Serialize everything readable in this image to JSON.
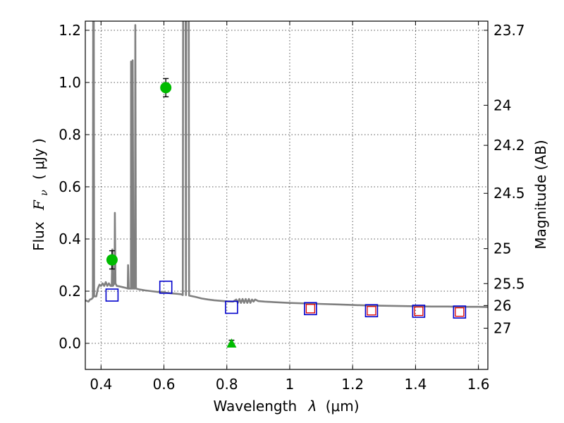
{
  "chart_data": {
    "type": "line",
    "title": "",
    "xlabel_prefix": "Wavelength",
    "xlabel_symbol": "λ",
    "xlabel_unit": "(μm)",
    "ylabel_prefix": "Flux",
    "ylabel_symbol": "F",
    "ylabel_sub": "ν",
    "ylabel_unit": "( μJy )",
    "y2label": "Magnitude (AB)",
    "xlim": [
      0.35,
      1.63
    ],
    "ylim": [
      -0.1,
      1.235
    ],
    "grid": true,
    "x_ticks": [
      {
        "value": 0.4,
        "label": "0.4"
      },
      {
        "value": 0.6,
        "label": "0.6"
      },
      {
        "value": 0.8,
        "label": "0.8"
      },
      {
        "value": 1.0,
        "label": "1"
      },
      {
        "value": 1.2,
        "label": "1.2"
      },
      {
        "value": 1.4,
        "label": "1.4"
      },
      {
        "value": 1.6,
        "label": "1.6"
      }
    ],
    "y_ticks": [
      {
        "value": 0.0,
        "label": "0.0"
      },
      {
        "value": 0.2,
        "label": "0.2"
      },
      {
        "value": 0.4,
        "label": "0.4"
      },
      {
        "value": 0.6,
        "label": "0.6"
      },
      {
        "value": 0.8,
        "label": "0.8"
      },
      {
        "value": 1.0,
        "label": "1.0"
      },
      {
        "value": 1.2,
        "label": "1.2"
      }
    ],
    "y2_ticks": [
      {
        "flux": 1.2,
        "label": "23.7"
      },
      {
        "flux": 0.9125,
        "label": "24"
      },
      {
        "flux": 0.759,
        "label": "24.2"
      },
      {
        "flux": 0.575,
        "label": "24.5"
      },
      {
        "flux": 0.363,
        "label": "25"
      },
      {
        "flux": 0.229,
        "label": "25.5"
      },
      {
        "flux": 0.145,
        "label": "26"
      },
      {
        "flux": 0.058,
        "label": "27"
      }
    ],
    "series": [
      {
        "kind": "model_spectrum",
        "color": "#808080",
        "points": [
          [
            0.35,
            0.165
          ],
          [
            0.36,
            0.16
          ],
          [
            0.365,
            0.168
          ],
          [
            0.37,
            0.17
          ],
          [
            0.374,
            0.175
          ],
          [
            0.375,
            1.25
          ],
          [
            0.377,
            1.25
          ],
          [
            0.378,
            0.18
          ],
          [
            0.385,
            0.18
          ],
          [
            0.39,
            0.21
          ],
          [
            0.395,
            0.225
          ],
          [
            0.4,
            0.22
          ],
          [
            0.405,
            0.23
          ],
          [
            0.41,
            0.22
          ],
          [
            0.415,
            0.235
          ],
          [
            0.42,
            0.22
          ],
          [
            0.425,
            0.23
          ],
          [
            0.43,
            0.22
          ],
          [
            0.434,
            0.22
          ],
          [
            0.436,
            0.36
          ],
          [
            0.438,
            0.22
          ],
          [
            0.44,
            0.225
          ],
          [
            0.443,
            0.23
          ],
          [
            0.444,
            0.5
          ],
          [
            0.446,
            0.23
          ],
          [
            0.45,
            0.22
          ],
          [
            0.46,
            0.218
          ],
          [
            0.47,
            0.215
          ],
          [
            0.48,
            0.212
          ],
          [
            0.485,
            0.21
          ],
          [
            0.486,
            0.3
          ],
          [
            0.488,
            0.21
          ],
          [
            0.495,
            0.21
          ],
          [
            0.4955,
            1.08
          ],
          [
            0.4975,
            0.21
          ],
          [
            0.5,
            0.21
          ],
          [
            0.5005,
            1.085
          ],
          [
            0.503,
            0.21
          ],
          [
            0.508,
            0.21
          ],
          [
            0.509,
            1.22
          ],
          [
            0.511,
            0.21
          ],
          [
            0.52,
            0.207
          ],
          [
            0.54,
            0.203
          ],
          [
            0.56,
            0.2
          ],
          [
            0.58,
            0.197
          ],
          [
            0.6,
            0.195
          ],
          [
            0.62,
            0.192
          ],
          [
            0.64,
            0.19
          ],
          [
            0.655,
            0.188
          ],
          [
            0.66,
            0.185
          ],
          [
            0.661,
            1.25
          ],
          [
            0.669,
            1.25
          ],
          [
            0.67,
            0.185
          ],
          [
            0.671,
            1.25
          ],
          [
            0.679,
            1.25
          ],
          [
            0.68,
            0.183
          ],
          [
            0.7,
            0.178
          ],
          [
            0.72,
            0.172
          ],
          [
            0.74,
            0.168
          ],
          [
            0.76,
            0.165
          ],
          [
            0.78,
            0.163
          ],
          [
            0.8,
            0.161
          ],
          [
            0.82,
            0.16
          ],
          [
            0.83,
            0.168
          ],
          [
            0.835,
            0.155
          ],
          [
            0.84,
            0.17
          ],
          [
            0.845,
            0.155
          ],
          [
            0.85,
            0.17
          ],
          [
            0.855,
            0.155
          ],
          [
            0.86,
            0.17
          ],
          [
            0.865,
            0.155
          ],
          [
            0.87,
            0.17
          ],
          [
            0.875,
            0.155
          ],
          [
            0.88,
            0.168
          ],
          [
            0.885,
            0.16
          ],
          [
            0.89,
            0.168
          ],
          [
            0.9,
            0.162
          ],
          [
            0.92,
            0.16
          ],
          [
            0.95,
            0.158
          ],
          [
            1.0,
            0.155
          ],
          [
            1.05,
            0.153
          ],
          [
            1.1,
            0.151
          ],
          [
            1.15,
            0.149
          ],
          [
            1.2,
            0.147
          ],
          [
            1.25,
            0.145
          ],
          [
            1.3,
            0.144
          ],
          [
            1.35,
            0.143
          ],
          [
            1.4,
            0.142
          ],
          [
            1.45,
            0.141
          ],
          [
            1.5,
            0.141
          ],
          [
            1.55,
            0.14
          ],
          [
            1.6,
            0.14
          ],
          [
            1.63,
            0.139
          ]
        ]
      },
      {
        "kind": "observed_photometry",
        "marker": "circle",
        "color": "#00bb00",
        "points": [
          {
            "x": 0.435,
            "y": 0.32,
            "err": 0.035
          },
          {
            "x": 0.606,
            "y": 0.98,
            "err": 0.035
          }
        ]
      },
      {
        "kind": "upper_limit",
        "marker": "triangle",
        "color": "#00bb00",
        "points": [
          {
            "x": 0.815,
            "y": 0.0,
            "err": 0.012
          }
        ]
      },
      {
        "kind": "model_photometry",
        "marker": "square",
        "color": "#0000cc",
        "points": [
          {
            "x": 0.435,
            "y": 0.185
          },
          {
            "x": 0.606,
            "y": 0.215
          },
          {
            "x": 0.815,
            "y": 0.138
          },
          {
            "x": 1.066,
            "y": 0.133
          },
          {
            "x": 1.26,
            "y": 0.125
          },
          {
            "x": 1.41,
            "y": 0.123
          },
          {
            "x": 1.54,
            "y": 0.12
          }
        ]
      },
      {
        "kind": "secondary_photometry",
        "marker": "square",
        "color": "#dd0000",
        "points": [
          {
            "x": 1.066,
            "y": 0.133
          },
          {
            "x": 1.26,
            "y": 0.125
          },
          {
            "x": 1.41,
            "y": 0.123
          },
          {
            "x": 1.54,
            "y": 0.12
          }
        ]
      }
    ]
  }
}
